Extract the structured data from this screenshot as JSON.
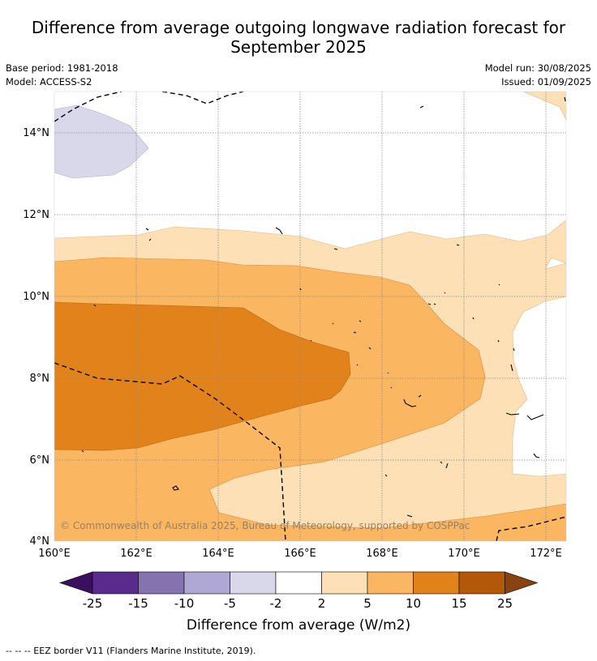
{
  "title_line1": "Difference from average outgoing longwave radiation forecast for",
  "title_line2": "September 2025",
  "base_period": "Base period: 1981-2018",
  "model": "Model: ACCESS-S2",
  "model_run": "Model run: 30/08/2025",
  "issued": "Issued: 01/09/2025",
  "copyright": "© Commonwealth of Australia 2025, Bureau of Meteorology, supported by COSPPac",
  "lon_labels": [
    "160°E",
    "162°E",
    "164°E",
    "166°E",
    "168°E",
    "170°E",
    "172°E"
  ],
  "lat_labels": [
    "14°N",
    "12°N",
    "10°N",
    "8°N",
    "6°N",
    "4°N"
  ],
  "colorbar": {
    "ticks": [
      "-25",
      "-15",
      "-10",
      "-5",
      "-2",
      "2",
      "5",
      "10",
      "15",
      "25"
    ],
    "colors": [
      "#5a2a8c",
      "#8473b0",
      "#b0a8d4",
      "#d9d8ea",
      "#ffffff",
      "#fde0b5",
      "#fbb662",
      "#e2821a",
      "#b35806"
    ],
    "low_extend_color": "#3b0f5e",
    "high_extend_color": "#8a4210",
    "label": "Difference from average (W/m2)"
  },
  "legend_text": "--  --  -- EEZ border V11 (Flanders Marine Institute, 2019)."
}
